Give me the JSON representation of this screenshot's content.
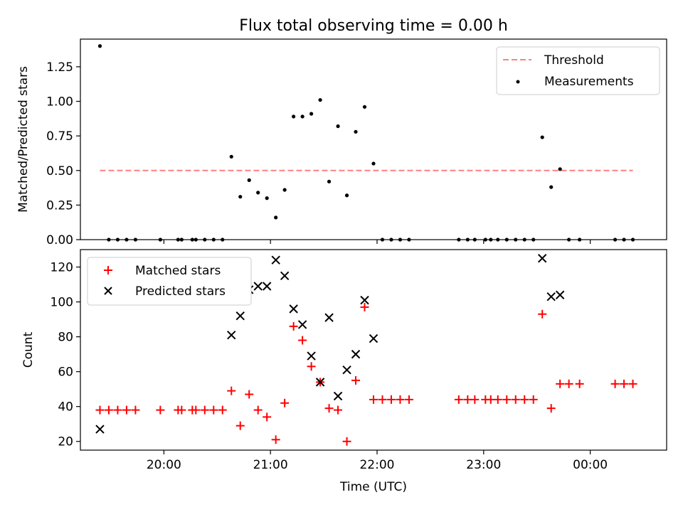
{
  "title": "Flux total observing time = 0.00 h",
  "chart_data": [
    {
      "type": "scatter",
      "ylabel": "Matched/Predicted stars",
      "ylim": [
        0,
        1.45
      ],
      "yticks": [
        "0.00",
        "0.25",
        "0.50",
        "0.75",
        "1.00",
        "1.25"
      ],
      "legend_position": "top-right",
      "threshold": {
        "name": "Threshold",
        "value": 0.5,
        "x_from": "19:24",
        "x_to": "00:24",
        "color": "#ff8080",
        "style": "dashed"
      },
      "series": [
        {
          "name": "Measurements",
          "color": "#000000",
          "points": [
            [
              "19:24",
              1.4
            ],
            [
              "19:29",
              0
            ],
            [
              "19:34",
              0
            ],
            [
              "19:39",
              0
            ],
            [
              "19:44",
              0
            ],
            [
              "19:58",
              0
            ],
            [
              "20:08",
              0
            ],
            [
              "20:10",
              0
            ],
            [
              "20:16",
              0
            ],
            [
              "20:18",
              0
            ],
            [
              "20:23",
              0
            ],
            [
              "20:28",
              0
            ],
            [
              "20:33",
              0
            ],
            [
              "20:38",
              0.6
            ],
            [
              "20:43",
              0.31
            ],
            [
              "20:48",
              0.43
            ],
            [
              "20:53",
              0.34
            ],
            [
              "20:58",
              0.3
            ],
            [
              "21:03",
              0.16
            ],
            [
              "21:08",
              0.36
            ],
            [
              "21:13",
              0.89
            ],
            [
              "21:18",
              0.89
            ],
            [
              "21:23",
              0.91
            ],
            [
              "21:28",
              1.01
            ],
            [
              "21:33",
              0.42
            ],
            [
              "21:38",
              0.82
            ],
            [
              "21:43",
              0.32
            ],
            [
              "21:48",
              0.78
            ],
            [
              "21:53",
              0.96
            ],
            [
              "21:58",
              0.55
            ],
            [
              "22:03",
              0
            ],
            [
              "22:08",
              0
            ],
            [
              "22:13",
              0
            ],
            [
              "22:18",
              0
            ],
            [
              "22:46",
              0
            ],
            [
              "22:51",
              0
            ],
            [
              "22:55",
              0
            ],
            [
              "23:01",
              0
            ],
            [
              "23:04",
              0
            ],
            [
              "23:08",
              0
            ],
            [
              "23:13",
              0
            ],
            [
              "23:18",
              0
            ],
            [
              "23:23",
              0
            ],
            [
              "23:28",
              0
            ],
            [
              "23:33",
              0.74
            ],
            [
              "23:38",
              0.38
            ],
            [
              "23:43",
              0.51
            ],
            [
              "23:48",
              0
            ],
            [
              "23:54",
              0
            ],
            [
              "00:14",
              0
            ],
            [
              "00:19",
              0
            ],
            [
              "00:24",
              0
            ]
          ]
        }
      ]
    },
    {
      "type": "scatter",
      "xlabel": "Time (UTC)",
      "ylabel": "Count",
      "ylim": [
        15,
        130
      ],
      "yticks": [
        "20",
        "40",
        "60",
        "80",
        "100",
        "120"
      ],
      "xticks": [
        "20:00",
        "21:00",
        "22:00",
        "23:00",
        "00:00"
      ],
      "legend_position": "top-left",
      "series": [
        {
          "name": "Matched stars",
          "color": "#ff0000",
          "marker": "+",
          "points": [
            [
              "19:24",
              38
            ],
            [
              "19:29",
              38
            ],
            [
              "19:34",
              38
            ],
            [
              "19:39",
              38
            ],
            [
              "19:44",
              38
            ],
            [
              "19:58",
              38
            ],
            [
              "20:08",
              38
            ],
            [
              "20:10",
              38
            ],
            [
              "20:16",
              38
            ],
            [
              "20:18",
              38
            ],
            [
              "20:23",
              38
            ],
            [
              "20:28",
              38
            ],
            [
              "20:33",
              38
            ],
            [
              "20:38",
              49
            ],
            [
              "20:43",
              29
            ],
            [
              "20:48",
              47
            ],
            [
              "20:53",
              38
            ],
            [
              "20:58",
              34
            ],
            [
              "21:03",
              21
            ],
            [
              "21:08",
              42
            ],
            [
              "21:13",
              86
            ],
            [
              "21:18",
              78
            ],
            [
              "21:23",
              63
            ],
            [
              "21:28",
              54
            ],
            [
              "21:33",
              39
            ],
            [
              "21:38",
              38
            ],
            [
              "21:43",
              20
            ],
            [
              "21:48",
              55
            ],
            [
              "21:53",
              97
            ],
            [
              "21:58",
              44
            ],
            [
              "22:03",
              44
            ],
            [
              "22:08",
              44
            ],
            [
              "22:13",
              44
            ],
            [
              "22:18",
              44
            ],
            [
              "22:46",
              44
            ],
            [
              "22:51",
              44
            ],
            [
              "22:55",
              44
            ],
            [
              "23:01",
              44
            ],
            [
              "23:04",
              44
            ],
            [
              "23:08",
              44
            ],
            [
              "23:13",
              44
            ],
            [
              "23:18",
              44
            ],
            [
              "23:23",
              44
            ],
            [
              "23:28",
              44
            ],
            [
              "23:33",
              93
            ],
            [
              "23:38",
              39
            ],
            [
              "23:43",
              53
            ],
            [
              "23:48",
              53
            ],
            [
              "23:54",
              53
            ],
            [
              "00:14",
              53
            ],
            [
              "00:19",
              53
            ],
            [
              "00:24",
              53
            ]
          ]
        },
        {
          "name": "Predicted stars",
          "color": "#000000",
          "marker": "x",
          "points": [
            [
              "19:24",
              27
            ],
            [
              "20:38",
              81
            ],
            [
              "20:43",
              92
            ],
            [
              "20:48",
              107
            ],
            [
              "20:53",
              109
            ],
            [
              "20:58",
              109
            ],
            [
              "21:03",
              124
            ],
            [
              "21:08",
              115
            ],
            [
              "21:13",
              96
            ],
            [
              "21:18",
              87
            ],
            [
              "21:23",
              69
            ],
            [
              "21:28",
              54
            ],
            [
              "21:33",
              91
            ],
            [
              "21:38",
              46
            ],
            [
              "21:43",
              61
            ],
            [
              "21:48",
              70
            ],
            [
              "21:53",
              101
            ],
            [
              "21:58",
              79
            ],
            [
              "23:33",
              125
            ],
            [
              "23:38",
              103
            ],
            [
              "23:43",
              104
            ]
          ]
        }
      ]
    }
  ]
}
